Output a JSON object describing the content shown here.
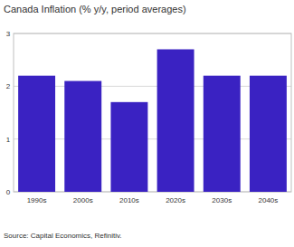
{
  "chart_data": {
    "type": "bar",
    "title": "Canada Inflation (% y/y, period averages)",
    "categories": [
      "1990s",
      "2000s",
      "2010s",
      "2020s",
      "2030s",
      "2040s"
    ],
    "values": [
      2.2,
      2.1,
      1.7,
      2.7,
      2.2,
      2.2
    ],
    "color": "#3a22c2",
    "ylim": [
      0,
      3
    ],
    "yticks": [
      0,
      1,
      2,
      3
    ],
    "grid": true,
    "source": "Source: Capital Economics, Refinitiv."
  }
}
